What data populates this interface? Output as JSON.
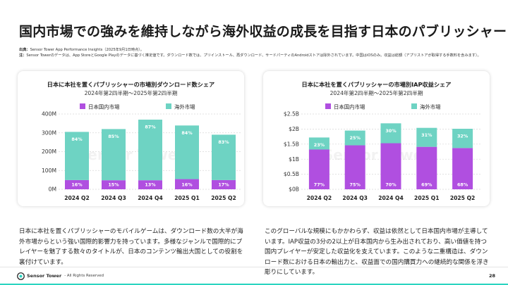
{
  "page": {
    "title": "国内市場での強みを維持しながら海外収益の成長を目指す日本のパブリッシャー",
    "source_label": "出典：",
    "source_text": "Sensor Tower App Performance Insights（2025年9月1日時点）。",
    "note_label": "注：",
    "note_text": "Sensor Towerのデータは、App StoreとGoogle Playのデータに基づく推定値です。ダウンロード数では、プリインストール、再ダウンロード、サードパーティのAndroidストアは除外されています。中国はiOSのみ。収益は総額（アプリストアが取得する手数料を含みます）。",
    "left_text": "日本に本社を置くパブリッシャーのモバイルゲームは、ダウンロード数の大半が海外市場からという強い国際的影響力を持っています。多様なジャンルで国際的にプレイヤーを魅了する数々のタイトルが、日本のコンテンツ輸出大国としての役割を裏付けています。",
    "right_text": "このグローバルな規模にもかかわらず、収益は依然として日本国内市場が主導しています。IAP収益の3分の2以上が日本国内から生み出されており、高い価値を持つ国内プレイヤーが安定した収益化を支えています。このような二重構造は、ダウンロード数における日本の輸出力と、収益面での国内購買力への継続的な関係を浮き彫りにしています。",
    "footer_brand": "Sensor Tower",
    "footer_rights": "- All Rights Reserved",
    "page_number": "28",
    "watermark": "Sensor Tower"
  },
  "colors": {
    "domestic": "#b04fe0",
    "overseas": "#6ed3c3",
    "accent": "#2bd4c0"
  },
  "chart_data": [
    {
      "type": "bar",
      "stacked": true,
      "title": "日本に本社を置くパブリッシャーの市場別ダウンロード数シェア",
      "subtitle": "2024年第2四半期〜2025年第2四半期",
      "categories": [
        "2024 Q2",
        "2024 Q3",
        "2024 Q4",
        "2025 Q1",
        "2025 Q2"
      ],
      "series": [
        {
          "name": "日本国内市場",
          "values": [
            49,
            48,
            48,
            54,
            49
          ],
          "labels": [
            "16%",
            "15%",
            "13%",
            "16%",
            "17%"
          ]
        },
        {
          "name": "海外市場",
          "values": [
            256,
            272,
            322,
            285,
            241
          ],
          "labels": [
            "84%",
            "85%",
            "87%",
            "84%",
            "83%"
          ]
        }
      ],
      "yticks": [
        "0M",
        "100M",
        "200M",
        "300M",
        "400M"
      ],
      "ylim": [
        0,
        400
      ],
      "grid": true,
      "legend": "top"
    },
    {
      "type": "bar",
      "stacked": true,
      "title": "日本に本社を置くパブリッシャーの市場別IAP収益シェア",
      "subtitle": "2024年第2四半期〜2025年第2四半期",
      "categories": [
        "2024 Q2",
        "2024 Q3",
        "2024 Q4",
        "2025 Q1",
        "2025 Q2"
      ],
      "series": [
        {
          "name": "日本国内市場",
          "values": [
            1.32,
            1.46,
            1.53,
            1.41,
            1.37
          ],
          "labels": [
            "77%",
            "75%",
            "70%",
            "69%",
            "68%"
          ]
        },
        {
          "name": "海外市場",
          "values": [
            0.4,
            0.49,
            0.66,
            0.63,
            0.64
          ],
          "labels": [
            "23%",
            "25%",
            "30%",
            "31%",
            "32%"
          ]
        }
      ],
      "yticks": [
        "$0B",
        "$0.5B",
        "$1B",
        "$1.5B",
        "$2B",
        "$2.5B"
      ],
      "ylim": [
        0,
        2.5
      ],
      "grid": true,
      "legend": "top"
    }
  ]
}
